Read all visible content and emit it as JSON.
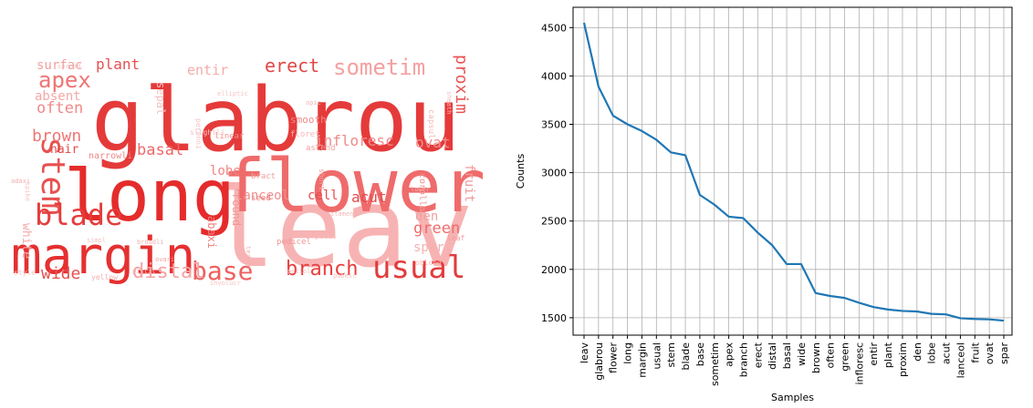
{
  "wordcloud": {
    "words": [
      {
        "text": "glabrou",
        "size": 96,
        "color": "#e53a3a"
      },
      {
        "text": "leav",
        "size": 120,
        "color": "#f7b3b3"
      },
      {
        "text": "flower",
        "size": 80,
        "color": "#ef6b6b"
      },
      {
        "text": "long",
        "size": 78,
        "color": "#e52b2b"
      },
      {
        "text": "margin",
        "size": 56,
        "color": "#e53030"
      },
      {
        "text": "usual",
        "size": 34,
        "color": "#e23c3c"
      },
      {
        "text": "stem",
        "size": 36,
        "color": "#e85050"
      },
      {
        "text": "blade",
        "size": 32,
        "color": "#e53c3c"
      },
      {
        "text": "base",
        "size": 28,
        "color": "#ee6060"
      },
      {
        "text": "sometim",
        "size": 24,
        "color": "#f4a0a0"
      },
      {
        "text": "apex",
        "size": 24,
        "color": "#ef7474"
      },
      {
        "text": "branch",
        "size": 22,
        "color": "#e83e3e"
      },
      {
        "text": "erect",
        "size": 20,
        "color": "#e24848"
      },
      {
        "text": "distal",
        "size": 22,
        "color": "#f4a4a4"
      },
      {
        "text": "basal",
        "size": 17,
        "color": "#ee6868"
      },
      {
        "text": "wide",
        "size": 18,
        "color": "#e65050"
      },
      {
        "text": "brown",
        "size": 18,
        "color": "#ef7676"
      },
      {
        "text": "often",
        "size": 17,
        "color": "#f08888"
      },
      {
        "text": "green",
        "size": 17,
        "color": "#ee6c6c"
      },
      {
        "text": "infloresc",
        "size": 16,
        "color": "#f08a8a"
      },
      {
        "text": "entir",
        "size": 15,
        "color": "#f4aaaa"
      },
      {
        "text": "plant",
        "size": 16,
        "color": "#e55050"
      },
      {
        "text": "proxim",
        "size": 18,
        "color": "#e95252"
      },
      {
        "text": "den",
        "size": 14,
        "color": "#f0a0a0"
      },
      {
        "text": "lobe",
        "size": 14,
        "color": "#f08282"
      },
      {
        "text": "acut",
        "size": 16,
        "color": "#e64a4a"
      },
      {
        "text": "lanceol",
        "size": 14,
        "color": "#f29090"
      },
      {
        "text": "fruit",
        "size": 14,
        "color": "#f19a9a"
      },
      {
        "text": "ovat",
        "size": 16,
        "color": "#f28e8e"
      },
      {
        "text": "spar",
        "size": 14,
        "color": "#f6b0b0"
      },
      {
        "text": "surfac",
        "size": 14,
        "color": "#f3a0a0"
      },
      {
        "text": "absent",
        "size": 14,
        "color": "#f4a8a8"
      },
      {
        "text": "hair",
        "size": 13,
        "color": "#e54a4a"
      },
      {
        "text": "white",
        "size": 13,
        "color": "#f4aaaa"
      },
      {
        "text": "cell",
        "size": 14,
        "color": "#e64c4c"
      },
      {
        "text": "round",
        "size": 12,
        "color": "#f29696"
      },
      {
        "text": "abaxi",
        "size": 12,
        "color": "#f08080"
      },
      {
        "text": "smooth",
        "size": 11,
        "color": "#f08a8a"
      },
      {
        "text": "sepal",
        "size": 12,
        "color": "#f6c0c0"
      },
      {
        "text": "narrowli",
        "size": 10,
        "color": "#f08888"
      },
      {
        "text": "corolla",
        "size": 10,
        "color": "#f19494"
      },
      {
        "text": "capsul",
        "size": 9,
        "color": "#f6b8b8"
      },
      {
        "text": "linear",
        "size": 9,
        "color": "#f09090"
      },
      {
        "text": "floret",
        "size": 9,
        "color": "#f6b6b6"
      },
      {
        "text": "ascend",
        "size": 9,
        "color": "#f2a0a0"
      },
      {
        "text": "seed",
        "size": 9,
        "color": "#ee7c7c"
      },
      {
        "text": "bract",
        "size": 9,
        "color": "#f29e9e"
      },
      {
        "text": "pedicel",
        "size": 9,
        "color": "#f09696"
      },
      {
        "text": "petal",
        "size": 8,
        "color": "#f6b8b8"
      },
      {
        "text": "leaf",
        "size": 8,
        "color": "#f09a9a"
      },
      {
        "text": "oblong",
        "size": 8,
        "color": "#f6b8b8"
      },
      {
        "text": "yellow",
        "size": 8,
        "color": "#f6b0b0"
      },
      {
        "text": "style",
        "size": 8,
        "color": "#f6c4c4"
      },
      {
        "text": "pistil",
        "size": 7,
        "color": "#f6b8b8"
      },
      {
        "text": "stamen",
        "size": 7,
        "color": "#f6b8b8"
      },
      {
        "text": "short",
        "size": 8,
        "color": "#f2a4a4"
      },
      {
        "text": "ovari",
        "size": 7,
        "color": "#f2a2a2"
      },
      {
        "text": "adaxi",
        "size": 7,
        "color": "#f4acac"
      },
      {
        "text": "simpl",
        "size": 7,
        "color": "#f6c4c4"
      },
      {
        "text": "termin",
        "size": 7,
        "color": "#f4b0b0"
      },
      {
        "text": "pubesc",
        "size": 7,
        "color": "#f6c0c0"
      },
      {
        "text": "petiol",
        "size": 7,
        "color": "#f6c0c0"
      },
      {
        "text": "sheath",
        "size": 7,
        "color": "#f6bcbc"
      },
      {
        "text": "perenni",
        "size": 8,
        "color": "#f6c4c4"
      },
      {
        "text": "apic",
        "size": 7,
        "color": "#f4b6b6"
      },
      {
        "text": "broadli",
        "size": 7,
        "color": "#f4b0b0"
      },
      {
        "text": "involucr",
        "size": 7,
        "color": "#f6c4c4"
      },
      {
        "text": "spread",
        "size": 7,
        "color": "#f6c4c4"
      },
      {
        "text": "lower",
        "size": 7,
        "color": "#f4b0b0"
      },
      {
        "text": "slightli",
        "size": 8,
        "color": "#f6c4c4"
      },
      {
        "text": "spike",
        "size": 7,
        "color": "#f6c4c4"
      },
      {
        "text": "elliptic",
        "size": 7,
        "color": "#f6c4c4"
      }
    ]
  },
  "chart_data": {
    "type": "line",
    "title": "",
    "xlabel": "Samples",
    "ylabel": "Counts",
    "categories": [
      "leav",
      "glabrou",
      "flower",
      "long",
      "margin",
      "usual",
      "stem",
      "blade",
      "base",
      "sometim",
      "apex",
      "branch",
      "erect",
      "distal",
      "basal",
      "wide",
      "brown",
      "often",
      "green",
      "infloresc",
      "entir",
      "plant",
      "proxim",
      "den",
      "lobe",
      "acut",
      "lanceol",
      "fruit",
      "ovat",
      "spar"
    ],
    "values": [
      4550,
      3890,
      3590,
      3500,
      3430,
      3340,
      3210,
      3180,
      2770,
      2670,
      2545,
      2530,
      2380,
      2250,
      2055,
      2055,
      1755,
      1725,
      1705,
      1655,
      1610,
      1585,
      1570,
      1565,
      1540,
      1535,
      1495,
      1487,
      1483,
      1470
    ],
    "yticks": [
      1500,
      2000,
      2500,
      3000,
      3500,
      4000,
      4500
    ],
    "ylim": [
      1320,
      4710
    ],
    "grid": true,
    "line_color": "#1f77b4"
  }
}
